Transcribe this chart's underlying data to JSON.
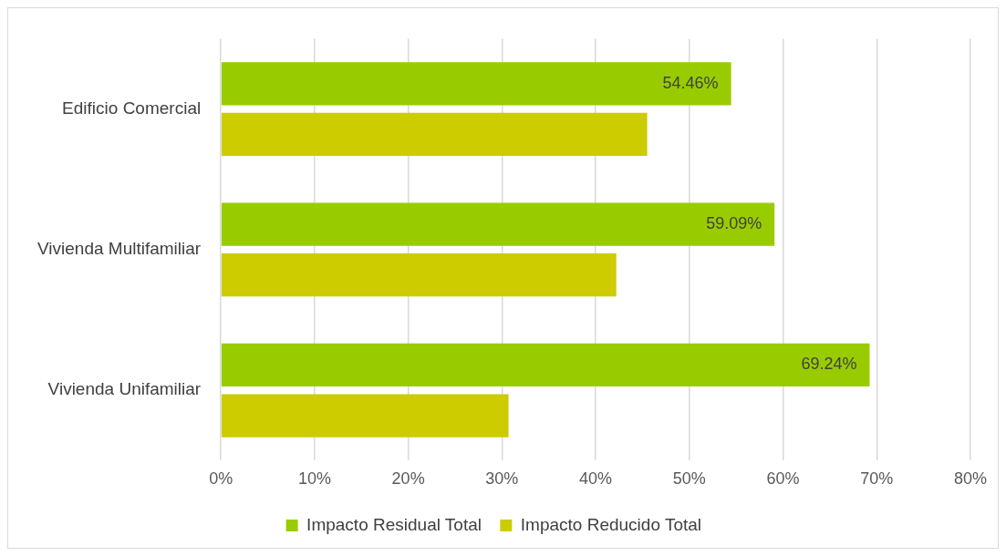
{
  "chart_data": {
    "type": "bar",
    "orientation": "horizontal",
    "categories": [
      "Edificio Comercial",
      "Vivienda Multifamiliar",
      "Vivienda Unifamiliar"
    ],
    "series": [
      {
        "name": "Impacto Residual Total",
        "color": "#99cc00",
        "values": [
          54.46,
          59.09,
          69.24
        ],
        "value_labels": [
          "54.46%",
          "59.09%",
          "69.24%"
        ]
      },
      {
        "name": "Impacto Reducido Total",
        "color": "#cccc00",
        "values": [
          45.5,
          42.2,
          30.7
        ]
      }
    ],
    "xlim": [
      0,
      80
    ],
    "xticks": [
      {
        "value": 0,
        "label": "0%"
      },
      {
        "value": 10,
        "label": "10%"
      },
      {
        "value": 20,
        "label": "20%"
      },
      {
        "value": 30,
        "label": "30%"
      },
      {
        "value": 40,
        "label": "40%"
      },
      {
        "value": 50,
        "label": "50%"
      },
      {
        "value": 60,
        "label": "60%"
      },
      {
        "value": 70,
        "label": "70%"
      },
      {
        "value": 80,
        "label": "80%"
      }
    ],
    "grid": "x",
    "legend": "bottom"
  }
}
